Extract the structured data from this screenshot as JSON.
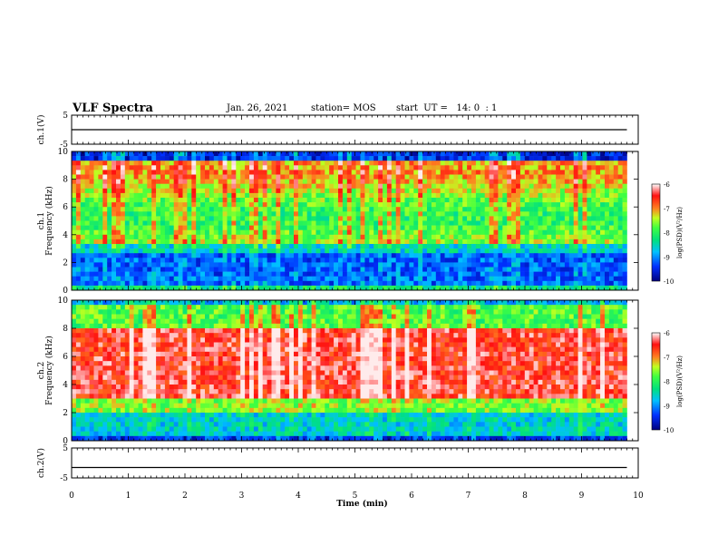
{
  "header": {
    "title": "VLF Spectra",
    "date": "Jan. 26, 2021",
    "station": "station= MOS",
    "start": "start  UT =   14: 0  : 1"
  },
  "chart_data": [
    {
      "type": "line",
      "name": "waveform-ch1",
      "ylabel": "ch.1(V)",
      "ylim": [
        -5,
        5
      ],
      "yticks": [
        "5",
        "-5"
      ],
      "x": [
        0,
        1,
        2,
        3,
        4,
        5,
        6,
        7,
        8,
        9,
        9.8
      ],
      "y": [
        0,
        0,
        0,
        0,
        0,
        0,
        0,
        0,
        0,
        0,
        0
      ]
    },
    {
      "type": "heatmap",
      "name": "spectrogram-ch1",
      "ylabel": "ch.1\nFrequency (kHz)",
      "ylim": [
        0,
        10
      ],
      "yticks": [
        "0",
        "2",
        "4",
        "6",
        "8",
        "10"
      ],
      "colorbar": {
        "label": "log(PSD)(V²/Hz)",
        "range": [
          -10,
          -6
        ],
        "ticks": [
          "-6",
          "-7",
          "-8",
          "-9",
          "-10"
        ]
      }
    },
    {
      "type": "heatmap",
      "name": "spectrogram-ch2",
      "ylabel": "ch.2\nFrequency (kHz)",
      "ylim": [
        0,
        10
      ],
      "yticks": [
        "0",
        "2",
        "4",
        "6",
        "8",
        "10"
      ],
      "colorbar": {
        "label": "log(PSD)(V²/Hz)",
        "range": [
          -10,
          -6
        ],
        "ticks": [
          "-6",
          "-7",
          "-8",
          "-9",
          "-10"
        ]
      }
    },
    {
      "type": "line",
      "name": "waveform-ch2",
      "ylabel": "ch.2(V)",
      "ylim": [
        -5,
        5
      ],
      "yticks": [
        "5",
        "-5"
      ],
      "x": [
        0,
        1,
        2,
        3,
        4,
        5,
        6,
        7,
        8,
        9,
        9.8
      ],
      "y": [
        -1.5,
        -1.5,
        -1.5,
        -1.5,
        -1.5,
        -1.5,
        -1.5,
        -1.5,
        -1.5,
        -1.5,
        -1.5
      ]
    }
  ],
  "xaxis": {
    "label": "Time (min)",
    "range": [
      0,
      10
    ],
    "ticks": [
      "0",
      "1",
      "2",
      "3",
      "4",
      "5",
      "6",
      "7",
      "8",
      "9",
      "10"
    ]
  },
  "colors": {
    "low": "#00007f",
    "mid_low": "#0050ff",
    "mid": "#00e0c0",
    "mid_high": "#40ff40",
    "high": "#ff2020",
    "peak": "#ffffff"
  }
}
